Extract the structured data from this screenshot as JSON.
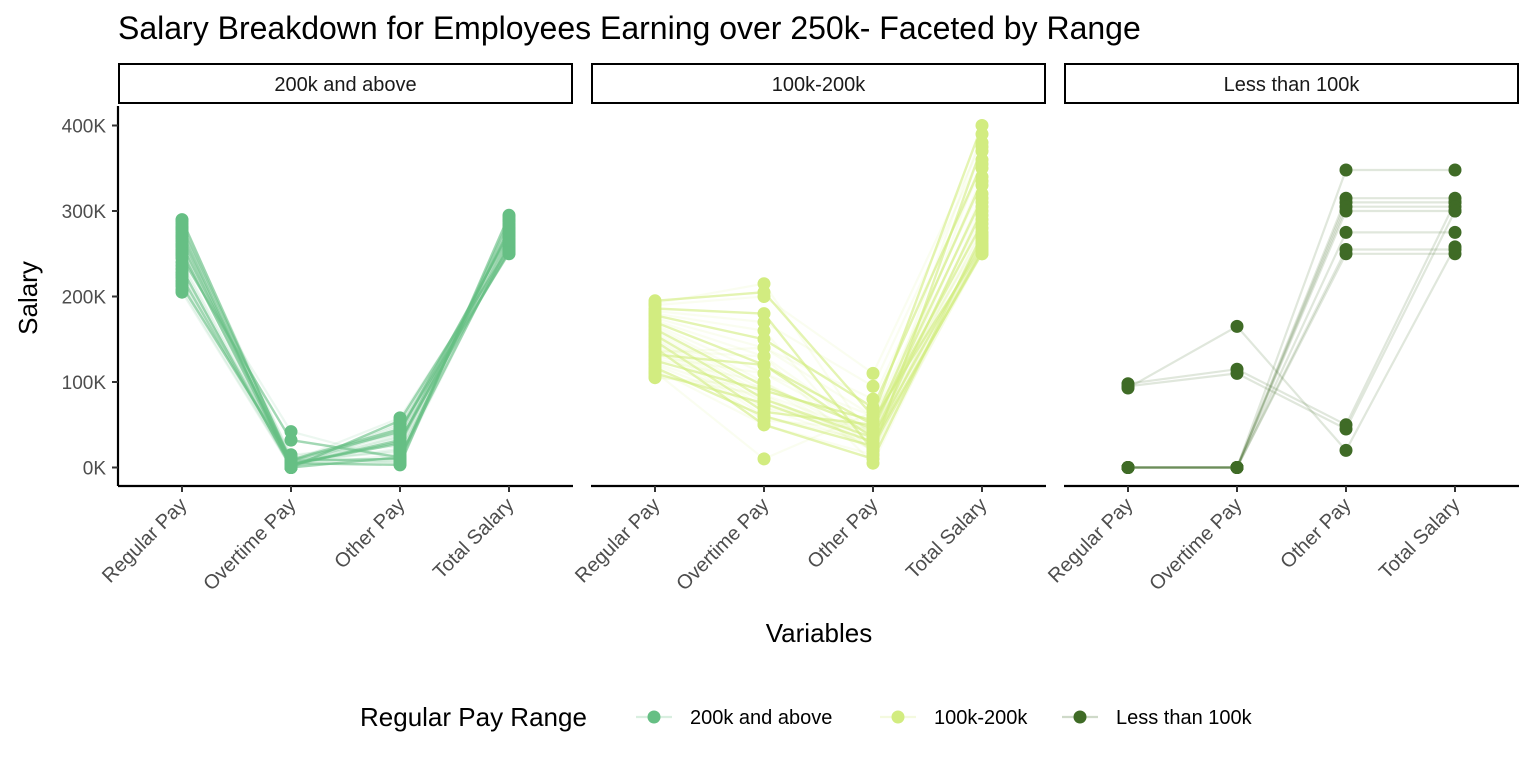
{
  "chart_data": {
    "type": "line",
    "title": "Salary Breakdown for Employees Earning over 250k- Faceted by Range",
    "xlabel": "Variables",
    "ylabel": "Salary",
    "categories": [
      "Regular Pay",
      "Overtime Pay",
      "Other Pay",
      "Total Salary"
    ],
    "ylim": [
      -20000,
      420000
    ],
    "yticks": [
      0,
      100000,
      200000,
      300000,
      400000
    ],
    "ytick_labels": [
      "0K",
      "100K",
      "200K",
      "300K",
      "400K"
    ],
    "grid": false,
    "legend": {
      "title": "Regular Pay Range",
      "position": "bottom",
      "entries": [
        {
          "label": "200k and above",
          "color": "#66BF84"
        },
        {
          "label": "100k-200k",
          "color": "#D2EC80"
        },
        {
          "label": "Less than 100k",
          "color": "#3F6B26"
        }
      ]
    },
    "facets": [
      {
        "label": "200k and above",
        "color": "#66BF84",
        "series": [
          {
            "values": [
              290000,
              5000,
              3000,
              295000
            ]
          },
          {
            "values": [
              288000,
              12000,
              5000,
              293000
            ]
          },
          {
            "values": [
              285000,
              3000,
              8000,
              290000
            ]
          },
          {
            "values": [
              282000,
              8000,
              10000,
              288000
            ]
          },
          {
            "values": [
              280000,
              2000,
              15000,
              285000
            ]
          },
          {
            "values": [
              278000,
              10000,
              6000,
              283000
            ]
          },
          {
            "values": [
              275000,
              0,
              12000,
              280000
            ]
          },
          {
            "values": [
              272000,
              5000,
              20000,
              280000
            ]
          },
          {
            "values": [
              270000,
              15000,
              25000,
              278000
            ]
          },
          {
            "values": [
              268000,
              3000,
              30000,
              276000
            ]
          },
          {
            "values": [
              265000,
              0,
              35000,
              275000
            ]
          },
          {
            "values": [
              262000,
              6000,
              40000,
              273000
            ]
          },
          {
            "values": [
              260000,
              8000,
              42000,
              272000
            ]
          },
          {
            "values": [
              258000,
              2000,
              45000,
              270000
            ]
          },
          {
            "values": [
              255000,
              0,
              38000,
              268000
            ]
          },
          {
            "values": [
              252000,
              4000,
              28000,
              267000
            ]
          },
          {
            "values": [
              250000,
              10000,
              18000,
              265000
            ]
          },
          {
            "values": [
              248000,
              42000,
              8000,
              263000
            ]
          },
          {
            "values": [
              245000,
              32000,
              12000,
              262000
            ]
          },
          {
            "values": [
              240000,
              5000,
              22000,
              260000
            ]
          },
          {
            "values": [
              236000,
              2000,
              50000,
              258000
            ]
          },
          {
            "values": [
              232000,
              0,
              55000,
              257000
            ]
          },
          {
            "values": [
              228000,
              7000,
              58000,
              255000
            ]
          },
          {
            "values": [
              225000,
              12000,
              40000,
              255000
            ]
          },
          {
            "values": [
              222000,
              3000,
              32000,
              254000
            ]
          },
          {
            "values": [
              218000,
              0,
              48000,
              253000
            ]
          },
          {
            "values": [
              215000,
              5000,
              36000,
              252000
            ]
          },
          {
            "values": [
              212000,
              9000,
              45000,
              251000
            ]
          },
          {
            "values": [
              208000,
              1000,
              52000,
              251000
            ]
          },
          {
            "values": [
              205000,
              0,
              44000,
              250000
            ]
          }
        ]
      },
      {
        "label": "100k-200k",
        "color": "#D2EC80",
        "series": [
          {
            "values": [
              195000,
              205000,
              60000,
              400000
            ]
          },
          {
            "values": [
              192000,
              215000,
              30000,
              390000
            ]
          },
          {
            "values": [
              190000,
              200000,
              110000,
              380000
            ]
          },
          {
            "values": [
              186000,
              180000,
              20000,
              375000
            ]
          },
          {
            "values": [
              183000,
              170000,
              95000,
              370000
            ]
          },
          {
            "values": [
              180000,
              160000,
              15000,
              360000
            ]
          },
          {
            "values": [
              178000,
              150000,
              70000,
              355000
            ]
          },
          {
            "values": [
              175000,
              140000,
              80000,
              350000
            ]
          },
          {
            "values": [
              172000,
              130000,
              40000,
              340000
            ]
          },
          {
            "values": [
              170000,
              120000,
              50000,
              335000
            ]
          },
          {
            "values": [
              167000,
              110000,
              60000,
              330000
            ]
          },
          {
            "values": [
              165000,
              100000,
              30000,
              320000
            ]
          },
          {
            "values": [
              162000,
              95000,
              45000,
              315000
            ]
          },
          {
            "values": [
              160000,
              90000,
              55000,
              310000
            ]
          },
          {
            "values": [
              157000,
              85000,
              20000,
              305000
            ]
          },
          {
            "values": [
              155000,
              80000,
              35000,
              300000
            ]
          },
          {
            "values": [
              152000,
              75000,
              40000,
              295000
            ]
          },
          {
            "values": [
              150000,
              70000,
              25000,
              290000
            ]
          },
          {
            "values": [
              148000,
              65000,
              50000,
              285000
            ]
          },
          {
            "values": [
              145000,
              60000,
              30000,
              280000
            ]
          },
          {
            "values": [
              142000,
              55000,
              45000,
              275000
            ]
          },
          {
            "values": [
              140000,
              50000,
              10000,
              272000
            ]
          },
          {
            "values": [
              137000,
              130000,
              5000,
              270000
            ]
          },
          {
            "values": [
              135000,
              140000,
              60000,
              268000
            ]
          },
          {
            "values": [
              132000,
              120000,
              35000,
              265000
            ]
          },
          {
            "values": [
              130000,
              110000,
              40000,
              262000
            ]
          },
          {
            "values": [
              127000,
              100000,
              20000,
              260000
            ]
          },
          {
            "values": [
              125000,
              90000,
              55000,
              258000
            ]
          },
          {
            "values": [
              122000,
              80000,
              30000,
              256000
            ]
          },
          {
            "values": [
              120000,
              70000,
              45000,
              255000
            ]
          },
          {
            "values": [
              117000,
              60000,
              25000,
              254000
            ]
          },
          {
            "values": [
              115000,
              50000,
              15000,
              253000
            ]
          },
          {
            "values": [
              112000,
              10000,
              65000,
              252000
            ]
          },
          {
            "values": [
              110000,
              75000,
              30000,
              251000
            ]
          },
          {
            "values": [
              107000,
              85000,
              40000,
              250000
            ]
          },
          {
            "values": [
              105000,
              95000,
              20000,
              250000
            ]
          }
        ]
      },
      {
        "label": "Less than 100k",
        "color": "#3F6B26",
        "series": [
          {
            "values": [
              98000,
              115000,
              50000,
              310000
            ]
          },
          {
            "values": [
              95000,
              110000,
              45000,
              300000
            ]
          },
          {
            "values": [
              93000,
              165000,
              20000,
              258000
            ]
          },
          {
            "values": [
              0,
              0,
              348000,
              348000
            ]
          },
          {
            "values": [
              0,
              0,
              315000,
              315000
            ]
          },
          {
            "values": [
              0,
              0,
              310000,
              310000
            ]
          },
          {
            "values": [
              0,
              0,
              305000,
              305000
            ]
          },
          {
            "values": [
              0,
              0,
              300000,
              300000
            ]
          },
          {
            "values": [
              0,
              0,
              250000,
              250000
            ]
          },
          {
            "values": [
              0,
              0,
              275000,
              275000
            ]
          },
          {
            "values": [
              0,
              0,
              255000,
              255000
            ]
          }
        ]
      }
    ]
  }
}
